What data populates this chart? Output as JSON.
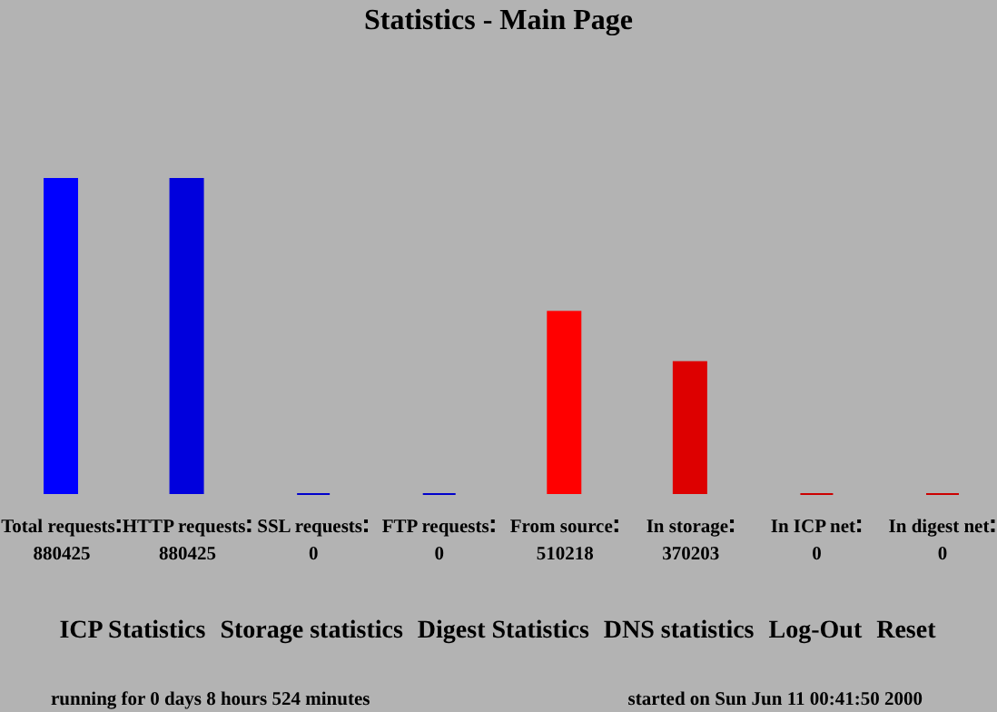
{
  "chart_data": {
    "type": "bar",
    "title": "Statistics - Main Page",
    "categories": [
      "Total requests",
      "HTTP requests",
      "SSL requests",
      "FTP requests",
      "From source",
      "In storage",
      "In ICP net",
      "In digest net"
    ],
    "values": [
      880425,
      880425,
      0,
      0,
      510218,
      370203,
      0,
      0
    ],
    "colors": [
      "#0000ff",
      "#0000dd",
      "#0000cc",
      "#0000cc",
      "#ff0000",
      "#dd0000",
      "#cc0000",
      "#cc0000"
    ],
    "data_labels": true,
    "annotations": [
      "ICP Statistics",
      "Storage statistics",
      "Digest Statistics",
      "DNS statistics",
      "Log-Out",
      "Reset",
      "running for 0 days 8 hours 524 minutes",
      "started on Sun Jun 11 00:41:50 2000"
    ]
  }
}
